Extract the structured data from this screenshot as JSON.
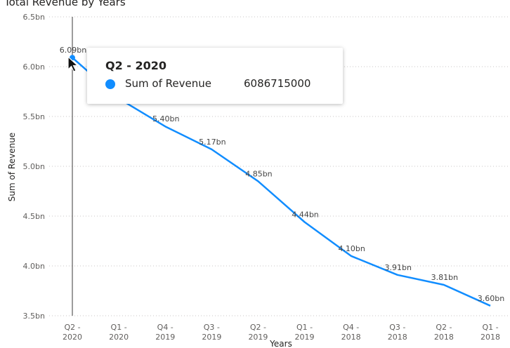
{
  "chart_data": {
    "type": "line",
    "title": "Total Revenue by Years",
    "xlabel": "Years",
    "ylabel": "Sum of Revenue",
    "categories": [
      [
        "Q2 -",
        "2020"
      ],
      [
        "Q1 -",
        "2020"
      ],
      [
        "Q4 -",
        "2019"
      ],
      [
        "Q3 -",
        "2019"
      ],
      [
        "Q2 -",
        "2019"
      ],
      [
        "Q1 -",
        "2019"
      ],
      [
        "Q4 -",
        "2018"
      ],
      [
        "Q3 -",
        "2018"
      ],
      [
        "Q2 -",
        "2018"
      ],
      [
        "Q1 -",
        "2018"
      ]
    ],
    "series": [
      {
        "name": "Sum of Revenue",
        "color": "#118dff",
        "values": [
          6.09,
          5.68,
          5.4,
          5.17,
          4.85,
          4.44,
          4.1,
          3.91,
          3.81,
          3.6
        ],
        "labels": [
          "6.09bn",
          "",
          "5.40bn",
          "5.17bn",
          "4.85bn",
          "4.44bn",
          "4.10bn",
          "3.91bn",
          "3.81bn",
          "3.60bn"
        ]
      }
    ],
    "yticks": [
      3.5,
      4.0,
      4.5,
      5.0,
      5.5,
      6.0,
      6.5
    ],
    "ytick_labels": [
      "3.5bn",
      "4.0bn",
      "4.5bn",
      "5.0bn",
      "5.5bn",
      "6.0bn",
      "6.5bn"
    ],
    "ylim": [
      3.5,
      6.5
    ],
    "grid": true,
    "highlight_index": 0
  },
  "tooltip": {
    "title": "Q2 - 2020",
    "series_name": "Sum of Revenue",
    "value": "6086715000",
    "dot_color": "#118dff"
  }
}
